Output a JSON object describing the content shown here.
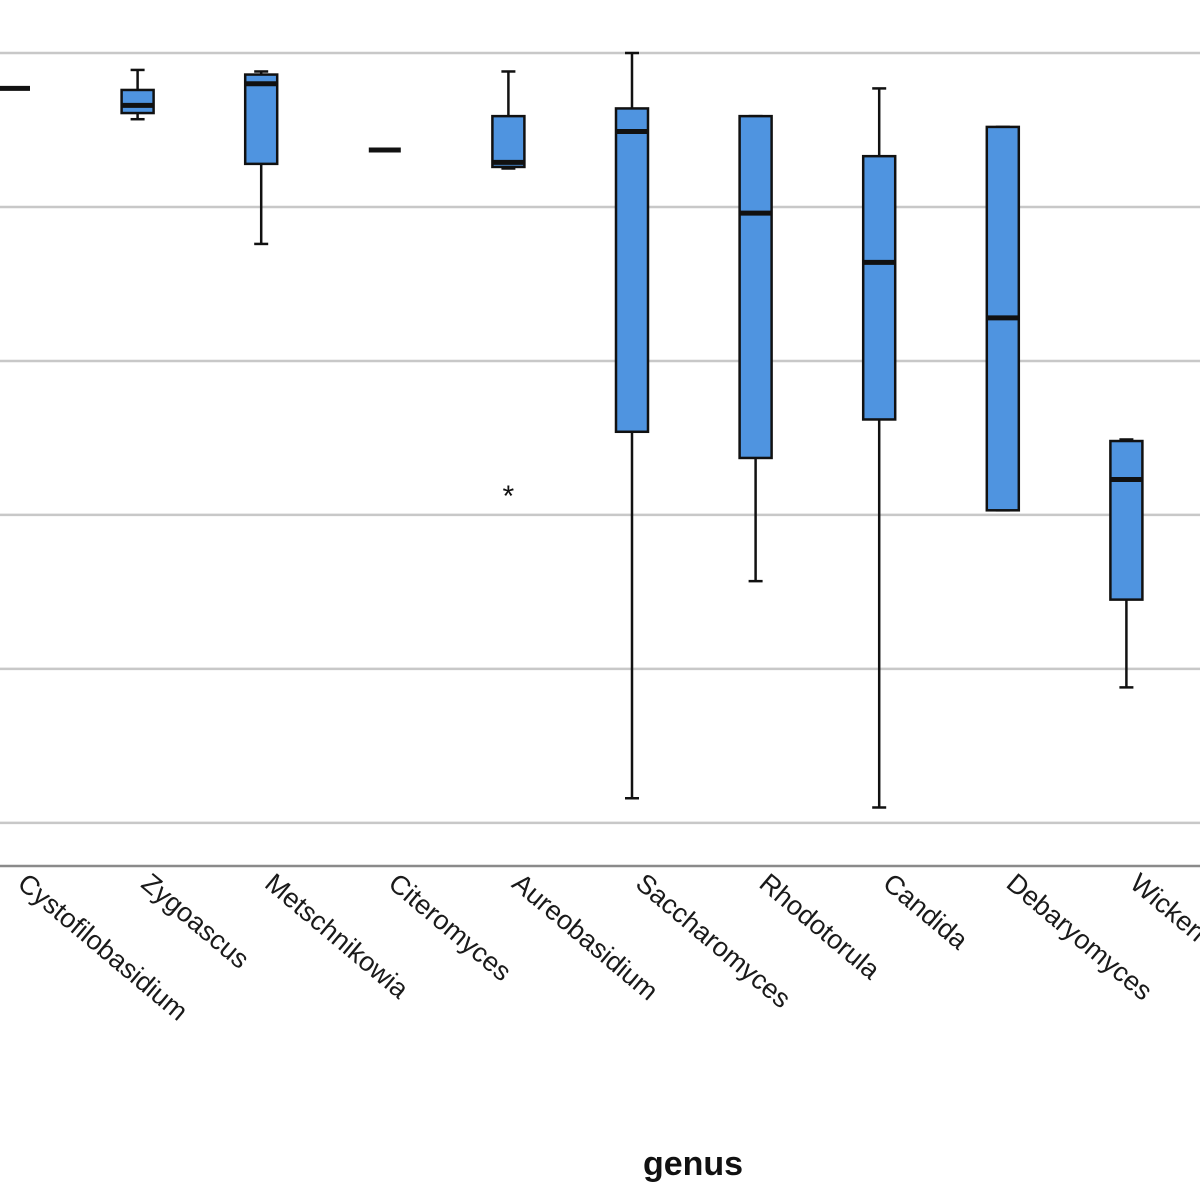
{
  "chart_data": {
    "type": "box",
    "xlabel": "genus",
    "ylabel": "",
    "grid": true,
    "colors": {
      "box_fill": "#4f94e0",
      "line": "#111111",
      "grid": "#c8c8c8",
      "background": "#ffffff"
    },
    "ylim": [
      -0.28,
      5.0
    ],
    "gridlines": [
      0,
      1,
      2,
      3,
      4,
      5
    ],
    "categories": [
      "Cystofilobasidium",
      "Zygoascus",
      "Metschnikowia",
      "Citeromyces",
      "Aureobasidium",
      "Saccharomyces",
      "Rhodotorula",
      "Candida",
      "Debaryomyces",
      "Wickerhamomyces"
    ],
    "boxes": [
      {
        "category": "Cystofilobasidium",
        "min": 4.77,
        "q1": 4.77,
        "median": 4.77,
        "q3": 4.77,
        "max": 4.77,
        "outliers": []
      },
      {
        "category": "Zygoascus",
        "min": 4.57,
        "q1": 4.61,
        "median": 4.66,
        "q3": 4.76,
        "max": 4.89,
        "outliers": []
      },
      {
        "category": "Metschnikowia",
        "min": 3.76,
        "q1": 4.28,
        "median": 4.8,
        "q3": 4.86,
        "max": 4.88,
        "outliers": []
      },
      {
        "category": "Citeromyces",
        "min": 4.37,
        "q1": 4.37,
        "median": 4.37,
        "q3": 4.37,
        "max": 4.37,
        "outliers": []
      },
      {
        "category": "Aureobasidium",
        "min": 4.25,
        "q1": 4.26,
        "median": 4.29,
        "q3": 4.59,
        "max": 4.88,
        "outliers": [
          2.15
        ]
      },
      {
        "category": "Saccharomyces",
        "min": 0.16,
        "q1": 2.54,
        "median": 4.49,
        "q3": 4.64,
        "max": 5.0,
        "outliers": []
      },
      {
        "category": "Rhodotorula",
        "min": 1.57,
        "q1": 2.37,
        "median": 3.96,
        "q3": 4.59,
        "max": 4.59,
        "outliers": []
      },
      {
        "category": "Candida",
        "min": 0.1,
        "q1": 2.62,
        "median": 3.64,
        "q3": 4.33,
        "max": 4.77,
        "outliers": []
      },
      {
        "category": "Debaryomyces",
        "min": 2.03,
        "q1": 2.03,
        "median": 3.28,
        "q3": 4.52,
        "max": 4.52,
        "outliers": []
      },
      {
        "category": "Wickerhamomyces",
        "min": 0.88,
        "q1": 1.45,
        "median": 2.23,
        "q3": 2.48,
        "max": 2.49,
        "outliers": []
      }
    ]
  }
}
